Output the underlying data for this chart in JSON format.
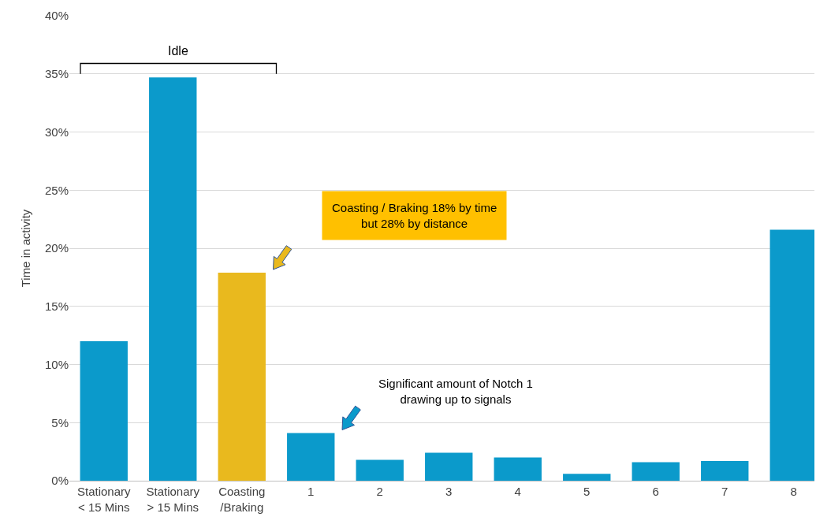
{
  "chart_data": {
    "type": "bar",
    "ylabel": "Time in activity",
    "categories": [
      "Stationary\n< 15 Mins",
      "Stationary\n> 15 Mins",
      "Coasting\n/Braking",
      "1",
      "2",
      "3",
      "4",
      "5",
      "6",
      "7",
      "8"
    ],
    "values": [
      12,
      34.7,
      17.9,
      4.1,
      1.8,
      2.4,
      2,
      0.6,
      1.6,
      1.7,
      21.6
    ],
    "colors": [
      "#0b9acb",
      "#0b9acb",
      "#e9b91e",
      "#0b9acb",
      "#0b9acb",
      "#0b9acb",
      "#0b9acb",
      "#0b9acb",
      "#0b9acb",
      "#0b9acb",
      "#0b9acb"
    ],
    "ylim": [
      0,
      40
    ],
    "yticks": [
      {
        "value": 0,
        "label": "0%"
      },
      {
        "value": 5,
        "label": "5%"
      },
      {
        "value": 10,
        "label": "10%"
      },
      {
        "value": 15,
        "label": "15%"
      },
      {
        "value": 20,
        "label": "20%"
      },
      {
        "value": 25,
        "label": "25%"
      },
      {
        "value": 30,
        "label": "30%"
      },
      {
        "value": 35,
        "label": "35%"
      },
      {
        "value": 40,
        "label": "40%"
      }
    ],
    "grid": "y",
    "annotations": [
      "Idle",
      "Coasting / Braking 18% by time\nbut 28% by distance",
      "Significant amount of Notch 1\ndrawing up to signals"
    ]
  }
}
